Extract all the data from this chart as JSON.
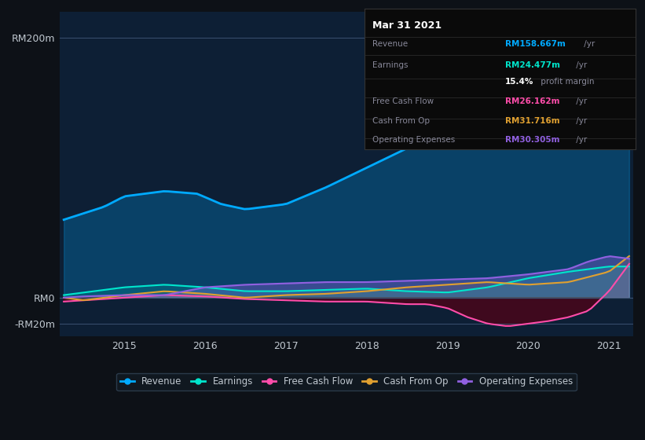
{
  "bg_color": "#0d1117",
  "plot_bg_color": "#0d1f35",
  "title_box_bg": "#0a0a0a",
  "grid_color": "#2a3a4a",
  "text_color": "#c0c8d0",
  "y_label_200": "RM200m",
  "y_label_0": "RM0",
  "y_label_neg20": "-RM20m",
  "ylim": [
    -30,
    220
  ],
  "xlim": [
    2014.2,
    2021.3
  ],
  "revenue_color": "#00aaff",
  "earnings_color": "#00e5cc",
  "fcf_color": "#ff4daa",
  "cashfromop_color": "#e0a030",
  "opex_color": "#9060e0",
  "legend_items": [
    "Revenue",
    "Earnings",
    "Free Cash Flow",
    "Cash From Op",
    "Operating Expenses"
  ],
  "tooltip_title": "Mar 31 2021",
  "tooltip_revenue": "RM158.667m /yr",
  "tooltip_earnings": "RM24.477m /yr",
  "tooltip_profit_margin": "15.4% profit margin",
  "tooltip_fcf": "RM26.162m /yr",
  "tooltip_cashfromop": "RM31.716m /yr",
  "tooltip_opex": "RM30.305m /yr"
}
